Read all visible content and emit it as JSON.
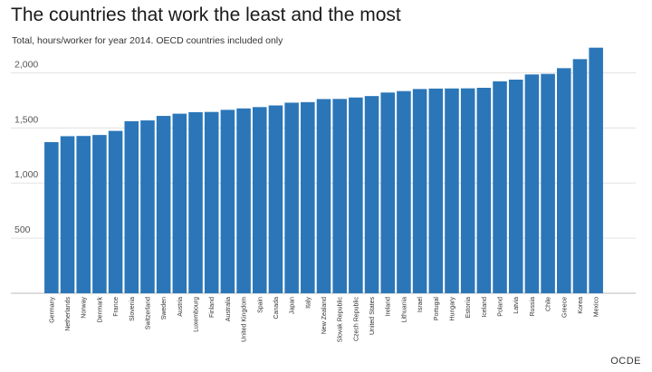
{
  "title": "The countries that work the least and the most",
  "subtitle": "Total, hours/worker for year 2014. OECD countries included only",
  "source": "OCDE",
  "chart_data": {
    "type": "bar",
    "title": "The countries that work the least and the most",
    "subtitle": "Total, hours/worker for year 2014. OECD countries included only",
    "xlabel": "",
    "ylabel": "",
    "ylim": [
      0,
      2250
    ],
    "yticks": [
      500,
      1000,
      1500,
      2000
    ],
    "ytick_labels": [
      "500",
      "1,000",
      "1,500",
      "2,000"
    ],
    "grid": true,
    "bar_color": "#2b76b8",
    "categories": [
      "Germany",
      "Netherlands",
      "Norway",
      "Denmark",
      "France",
      "Slovenia",
      "Switzerland",
      "Sweden",
      "Austria",
      "Luxembourg",
      "Finland",
      "Australia",
      "United Kingdom",
      "Spain",
      "Canada",
      "Japan",
      "Italy",
      "New Zealand",
      "Slovak Republic",
      "Czech Republic",
      "United States",
      "Ireland",
      "Lithuania",
      "Israel",
      "Portugal",
      "Hungary",
      "Estonia",
      "Iceland",
      "Poland",
      "Latvia",
      "Russia",
      "Chile",
      "Greece",
      "Korea",
      "Mexico"
    ],
    "values": [
      1371,
      1425,
      1427,
      1436,
      1473,
      1561,
      1568,
      1609,
      1629,
      1643,
      1645,
      1664,
      1677,
      1689,
      1704,
      1729,
      1734,
      1762,
      1763,
      1776,
      1789,
      1821,
      1834,
      1853,
      1857,
      1858,
      1859,
      1864,
      1923,
      1938,
      1985,
      1990,
      2042,
      2124,
      2228
    ]
  }
}
